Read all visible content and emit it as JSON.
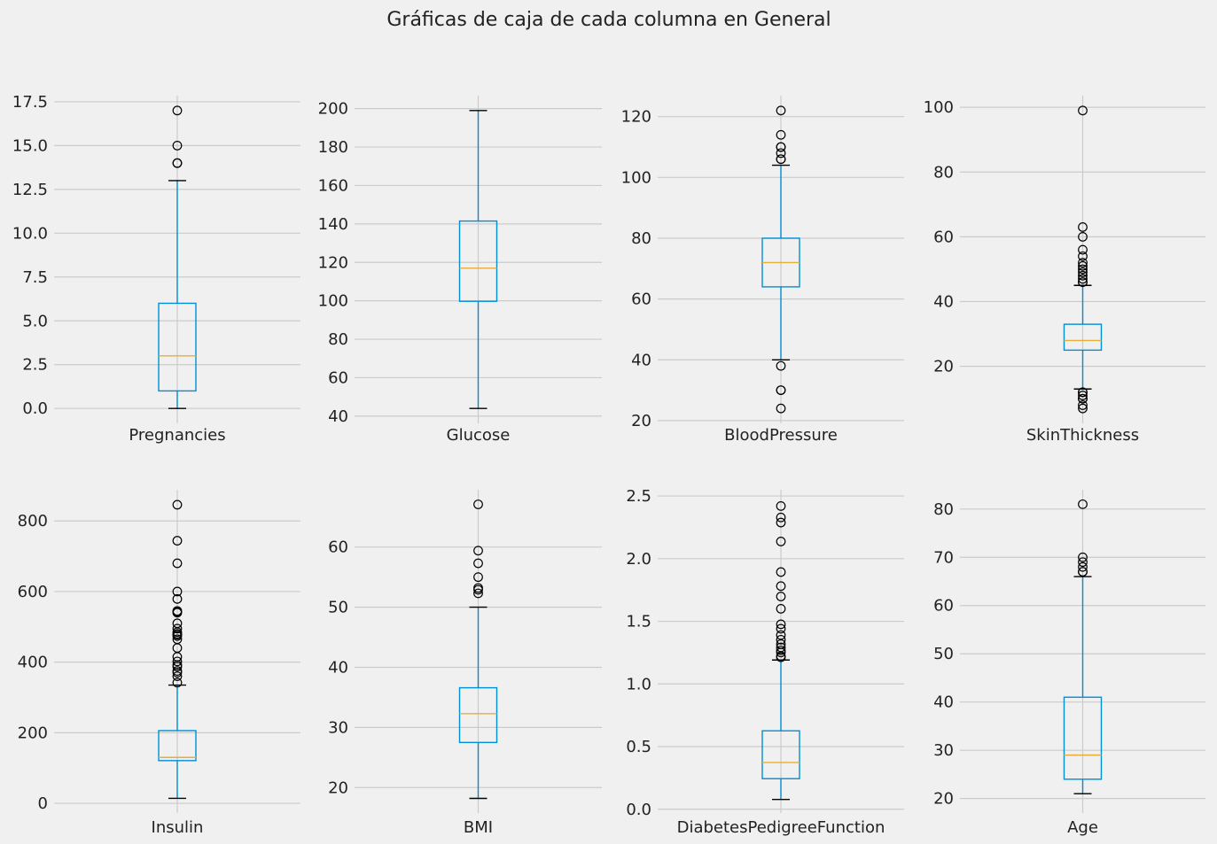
{
  "figure": {
    "title": "Gráficas de caja de cada columna en General",
    "colors": {
      "background": "#f0f0f0",
      "grid": "#cbcbcb",
      "box": "#008fd5",
      "median": "#e5ae38",
      "cap": "#000000",
      "flier": "#000000"
    }
  },
  "chart_data": [
    {
      "type": "box",
      "label": "Pregnancies",
      "grid": true,
      "ylim": [
        -0.85,
        17.85
      ],
      "yticks": [
        0.0,
        2.5,
        5.0,
        7.5,
        10.0,
        12.5,
        15.0,
        17.5
      ],
      "ytick_labels": [
        "0.0",
        "2.5",
        "5.0",
        "7.5",
        "10.0",
        "12.5",
        "15.0",
        "17.5"
      ],
      "whisker_low": 0,
      "q1": 1,
      "median": 3,
      "q3": 6,
      "whisker_high": 13,
      "outliers": [
        14,
        14,
        15,
        17
      ]
    },
    {
      "type": "box",
      "label": "Glucose",
      "grid": true,
      "ylim": [
        36.25,
        206.75
      ],
      "yticks": [
        40,
        60,
        80,
        100,
        120,
        140,
        160,
        180,
        200
      ],
      "ytick_labels": [
        "40",
        "60",
        "80",
        "100",
        "120",
        "140",
        "160",
        "180",
        "200"
      ],
      "whisker_low": 44,
      "q1": 99.75,
      "median": 117,
      "q3": 141.5,
      "whisker_high": 199,
      "outliers": []
    },
    {
      "type": "box",
      "label": "BloodPressure",
      "grid": true,
      "ylim": [
        19.1,
        126.9
      ],
      "yticks": [
        20,
        40,
        60,
        80,
        100,
        120
      ],
      "ytick_labels": [
        "20",
        "40",
        "60",
        "80",
        "100",
        "120"
      ],
      "whisker_low": 40,
      "q1": 64,
      "median": 72,
      "q3": 80,
      "whisker_high": 104,
      "outliers": [
        24,
        30,
        30,
        38,
        106,
        106,
        108,
        110,
        110,
        114,
        122
      ]
    },
    {
      "type": "box",
      "label": "SkinThickness",
      "grid": true,
      "ylim": [
        2.4,
        103.6
      ],
      "yticks": [
        20,
        40,
        60,
        80,
        100
      ],
      "ytick_labels": [
        "20",
        "40",
        "60",
        "80",
        "100"
      ],
      "whisker_low": 13,
      "q1": 25,
      "median": 28,
      "q3": 33,
      "whisker_high": 45,
      "outliers": [
        7,
        8,
        10,
        10,
        11,
        12,
        12,
        46,
        46,
        47,
        48,
        49,
        50,
        51,
        52,
        54,
        56,
        60,
        63,
        99
      ]
    },
    {
      "type": "box",
      "label": "Insulin",
      "grid": true,
      "ylim": [
        -27.45,
        888.45
      ],
      "yticks": [
        0,
        200,
        400,
        600,
        800
      ],
      "ytick_labels": [
        "0",
        "200",
        "400",
        "600",
        "800"
      ],
      "whisker_low": 14,
      "q1": 121,
      "median": 130,
      "q3": 206,
      "whisker_high": 335,
      "outliers": [
        342,
        360,
        370,
        375,
        387,
        392,
        402,
        415,
        440,
        465,
        474,
        478,
        480,
        485,
        495,
        510,
        540,
        543,
        545,
        579,
        600,
        680,
        744,
        846
      ]
    },
    {
      "type": "box",
      "label": "BMI",
      "grid": true,
      "ylim": [
        15.77,
        69.53
      ],
      "yticks": [
        20,
        30,
        40,
        50,
        60
      ],
      "ytick_labels": [
        "20",
        "30",
        "40",
        "50",
        "60"
      ],
      "whisker_low": 18.2,
      "q1": 27.5,
      "median": 32.3,
      "q3": 36.6,
      "whisker_high": 50.0,
      "outliers": [
        52.3,
        52.9,
        53.2,
        55.0,
        57.3,
        59.4,
        67.1
      ]
    },
    {
      "type": "box",
      "label": "DiabetesPedigreeFunction",
      "grid": true,
      "ylim": [
        -0.03,
        2.55
      ],
      "yticks": [
        0.0,
        0.5,
        1.0,
        1.5,
        2.0,
        2.5
      ],
      "ytick_labels": [
        "0.0",
        "0.5",
        "1.0",
        "1.5",
        "2.0",
        "2.5"
      ],
      "whisker_low": 0.078,
      "q1": 0.244,
      "median": 0.373,
      "q3": 0.626,
      "whisker_high": 1.191,
      "outliers": [
        1.213,
        1.222,
        1.251,
        1.268,
        1.292,
        1.318,
        1.353,
        1.39,
        1.441,
        1.476,
        1.6,
        1.698,
        1.781,
        1.893,
        2.137,
        2.288,
        2.329,
        2.42
      ]
    },
    {
      "type": "box",
      "label": "Age",
      "grid": true,
      "ylim": [
        17.0,
        84.0
      ],
      "yticks": [
        20,
        30,
        40,
        50,
        60,
        70,
        80
      ],
      "ytick_labels": [
        "20",
        "30",
        "40",
        "50",
        "60",
        "70",
        "80"
      ],
      "whisker_low": 21,
      "q1": 24,
      "median": 29,
      "q3": 41,
      "whisker_high": 66,
      "outliers": [
        67,
        67,
        68,
        69,
        70,
        81
      ]
    }
  ]
}
